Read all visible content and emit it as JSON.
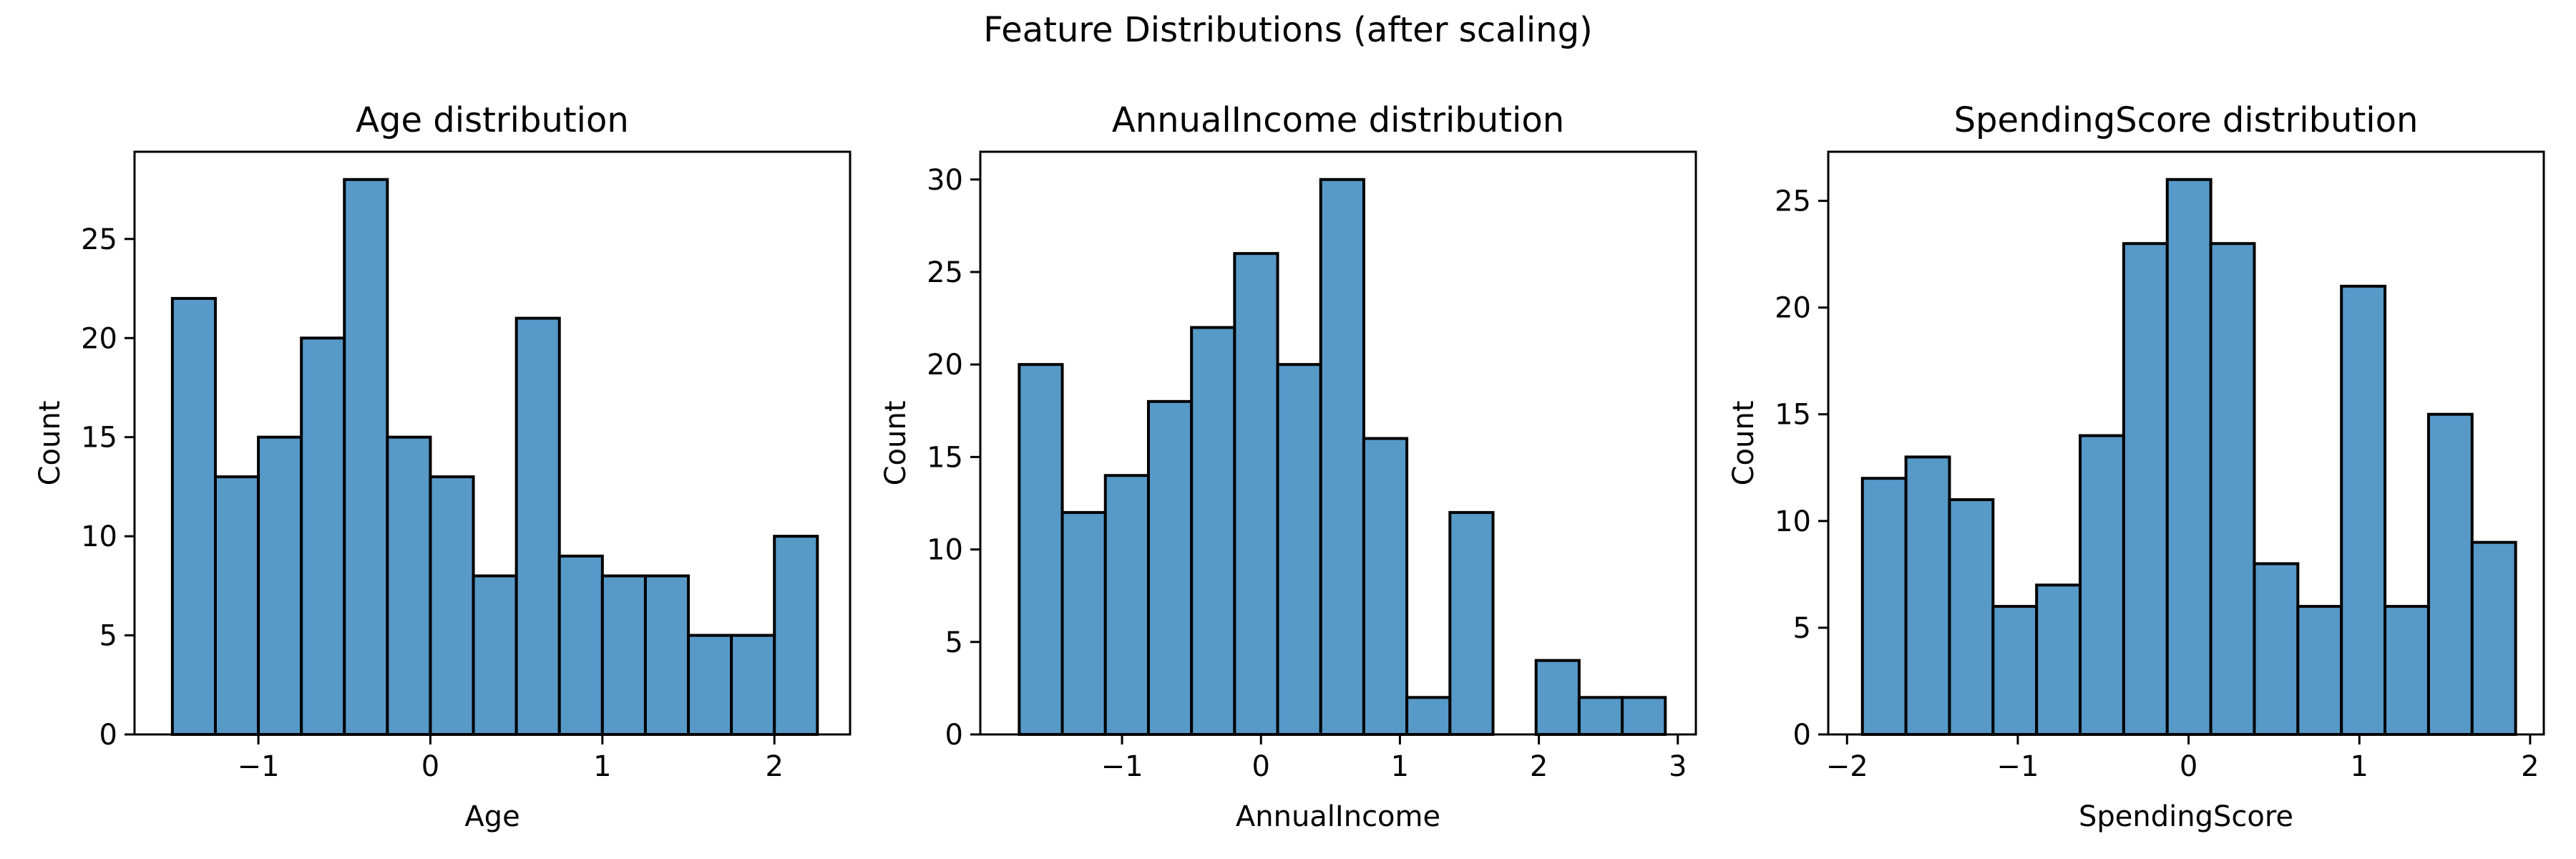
{
  "figure_title": "Feature Distributions (after scaling)",
  "colors": {
    "bar_fill": "#5799c7",
    "bar_edge": "#000000",
    "axes": "#000000",
    "background": "#ffffff"
  },
  "chart_data": [
    {
      "type": "bar",
      "title": "Age distribution",
      "xlabel": "Age",
      "ylabel": "Count",
      "xlim": [
        -1.72,
        2.44
      ],
      "ylim": [
        0,
        29.4
      ],
      "xticks": [
        -1,
        0,
        1,
        2
      ],
      "xtick_labels": [
        "−1",
        "0",
        "1",
        "2"
      ],
      "yticks": [
        0,
        5,
        10,
        15,
        20,
        25
      ],
      "ytick_labels": [
        "0",
        "5",
        "10",
        "15",
        "20",
        "25"
      ],
      "bin_edges": [
        -1.5,
        -1.25,
        -1.0,
        -0.75,
        -0.5,
        -0.25,
        0.0,
        0.25,
        0.5,
        0.75,
        1.0,
        1.25,
        1.5,
        1.75,
        2.0,
        2.25
      ],
      "values": [
        22,
        13,
        15,
        20,
        28,
        15,
        13,
        8,
        21,
        9,
        8,
        8,
        5,
        5,
        10
      ]
    },
    {
      "type": "bar",
      "title": "AnnualIncome distribution",
      "xlabel": "AnnualIncome",
      "ylabel": "Count",
      "xlim": [
        -2.02,
        3.13
      ],
      "ylim": [
        0,
        31.5
      ],
      "xticks": [
        -1,
        0,
        1,
        2,
        3
      ],
      "xtick_labels": [
        "−1",
        "0",
        "1",
        "2",
        "3"
      ],
      "yticks": [
        0,
        5,
        10,
        15,
        20,
        25,
        30
      ],
      "ytick_labels": [
        "0",
        "5",
        "10",
        "15",
        "20",
        "25",
        "30"
      ],
      "bin_edges": [
        -1.74,
        -1.43,
        -1.12,
        -0.81,
        -0.5,
        -0.19,
        0.12,
        0.43,
        0.74,
        1.05,
        1.36,
        1.67,
        1.98,
        2.29,
        2.6,
        2.91
      ],
      "values": [
        20,
        12,
        14,
        18,
        22,
        26,
        20,
        30,
        16,
        2,
        12,
        0,
        4,
        2,
        2
      ]
    },
    {
      "type": "bar",
      "title": "SpendingScore distribution",
      "xlabel": "SpendingScore",
      "ylabel": "Count",
      "xlim": [
        -2.11,
        2.08
      ],
      "ylim": [
        0,
        27.3
      ],
      "xticks": [
        -2,
        -1,
        0,
        1,
        2
      ],
      "xtick_labels": [
        "−2",
        "−1",
        "0",
        "1",
        "2"
      ],
      "yticks": [
        0,
        5,
        10,
        15,
        20,
        25
      ],
      "ytick_labels": [
        "0",
        "5",
        "10",
        "15",
        "20",
        "25"
      ],
      "bin_edges": [
        -1.91,
        -1.655,
        -1.4,
        -1.145,
        -0.89,
        -0.635,
        -0.38,
        -0.125,
        0.13,
        0.385,
        0.64,
        0.895,
        1.15,
        1.405,
        1.66,
        1.915
      ],
      "values": [
        12,
        13,
        11,
        6,
        7,
        14,
        23,
        26,
        23,
        8,
        6,
        21,
        6,
        15,
        9
      ]
    }
  ]
}
